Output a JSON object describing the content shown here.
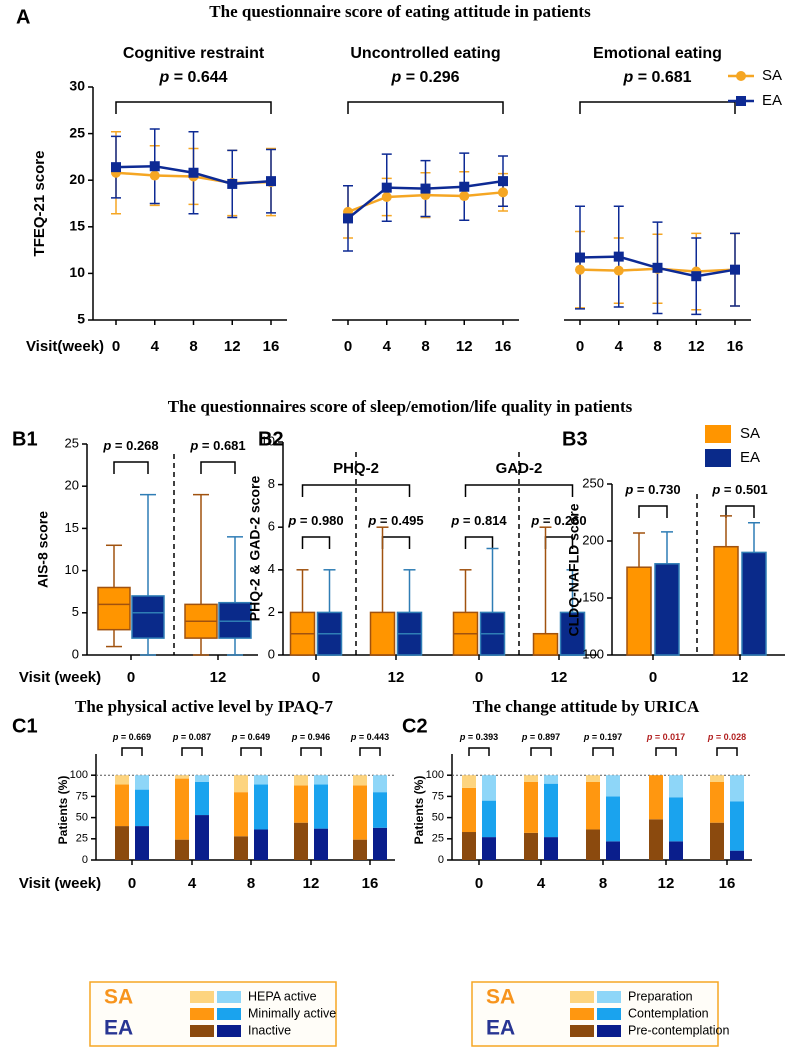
{
  "chart_data": [
    {
      "type": "line",
      "panel": "A",
      "title": "The questionnaire score of eating attitude in patients",
      "ylabel": "TFEQ-21 score",
      "xlabel": "Visit(week)",
      "x": [
        0,
        4,
        8,
        12,
        16
      ],
      "xlim": [
        0,
        16
      ],
      "ylim": [
        5,
        30
      ],
      "yticks": [
        5,
        10,
        15,
        20,
        25,
        30
      ],
      "groups": [
        {
          "title": "Cognitive restraint",
          "p_label": "p = 0.644"
        },
        {
          "title": "Uncontrolled eating",
          "p_label": "p = 0.296"
        },
        {
          "title": "Emotional eating",
          "p_label": "p = 0.681"
        }
      ],
      "legend": "upper right",
      "series": [
        {
          "name": "SA",
          "color": "#F5A623",
          "marker": "circle",
          "values": [
            [
              20.8,
              20.5,
              20.4,
              19.7,
              19.8
            ],
            [
              16.6,
              18.2,
              18.4,
              18.3,
              18.7
            ],
            [
              10.4,
              10.3,
              10.5,
              10.2,
              10.4
            ]
          ],
          "errors": [
            [
              4.4,
              3.2,
              3.0,
              3.5,
              3.6
            ],
            [
              2.8,
              2.0,
              2.4,
              2.6,
              2.0
            ],
            [
              4.1,
              3.5,
              3.7,
              4.1,
              3.9
            ]
          ]
        },
        {
          "name": "EA",
          "color": "#0D2A94",
          "marker": "square",
          "values": [
            [
              21.4,
              21.5,
              20.8,
              19.6,
              19.9
            ],
            [
              15.9,
              19.2,
              19.1,
              19.3,
              19.9
            ],
            [
              11.7,
              11.8,
              10.6,
              9.7,
              10.4
            ]
          ],
          "errors": [
            [
              3.3,
              4.0,
              4.4,
              3.6,
              3.4
            ],
            [
              3.5,
              3.6,
              3.0,
              3.6,
              2.7
            ],
            [
              5.5,
              5.4,
              4.9,
              4.1,
              3.9
            ]
          ]
        }
      ]
    },
    {
      "type": "box",
      "panel": "B1",
      "section_title": "The questionnaires score of sleep/emotion/life quality in patients",
      "ylabel": "AIS-8 score",
      "xlabel": "Visit (week)",
      "categories": [
        "0",
        "12"
      ],
      "ylim": [
        0,
        25
      ],
      "yticks": [
        0,
        5,
        10,
        15,
        20,
        25
      ],
      "p_labels": [
        "p = 0.268",
        "p = 0.681"
      ],
      "series": [
        {
          "color": "#FF9500",
          "edgecolor": "#A0520F",
          "values": [
            {
              "min": 1,
              "q1": 3,
              "median": 6,
              "q3": 8,
              "max": 13
            },
            {
              "min": 0,
              "q1": 2,
              "median": 4,
              "q3": 6,
              "max": 19
            }
          ]
        },
        {
          "color": "#0A2A8A",
          "edgecolor": "#2F7DB5",
          "values": [
            {
              "min": 0,
              "q1": 2,
              "median": 5,
              "q3": 7,
              "max": 19
            },
            {
              "min": 0,
              "q1": 2,
              "median": 4,
              "q3": 6.2,
              "max": 14
            }
          ]
        }
      ]
    },
    {
      "type": "box",
      "panel": "B2",
      "ylabel": "PHQ-2 & GAD-2 score",
      "categories": [
        "0",
        "12"
      ],
      "ylim": [
        0,
        10
      ],
      "yticks": [
        0,
        2,
        4,
        6,
        8,
        10
      ],
      "groups": [
        {
          "title": "PHQ-2",
          "p_labels": [
            "p = 0.980",
            "p = 0.495"
          ]
        },
        {
          "title": "GAD-2",
          "p_labels": [
            "p = 0.814",
            "p = 0.260"
          ]
        }
      ],
      "series": [
        {
          "color": "#FF9500",
          "edgecolor": "#A0520F",
          "values": [
            [
              {
                "min": 0,
                "q1": 0,
                "median": 1,
                "q3": 2,
                "max": 4
              },
              {
                "min": 0,
                "q1": 0,
                "median": 0,
                "q3": 2,
                "max": 6
              }
            ],
            [
              {
                "min": 0,
                "q1": 0,
                "median": 1,
                "q3": 2,
                "max": 4
              },
              {
                "min": 0,
                "q1": 0,
                "median": 0,
                "q3": 1,
                "max": 6
              }
            ]
          ]
        },
        {
          "color": "#0A2A8A",
          "edgecolor": "#2F7DB5",
          "values": [
            [
              {
                "min": 0,
                "q1": 0,
                "median": 1,
                "q3": 2,
                "max": 4
              },
              {
                "min": 0,
                "q1": 0,
                "median": 1,
                "q3": 2,
                "max": 4
              }
            ],
            [
              {
                "min": 0,
                "q1": 0,
                "median": 1,
                "q3": 2,
                "max": 5
              },
              {
                "min": 0,
                "q1": 0,
                "median": 0,
                "q3": 2,
                "max": 4
              }
            ]
          ]
        }
      ]
    },
    {
      "type": "bar",
      "panel": "B3",
      "ylabel": "CLDQ-NAFLD score",
      "categories": [
        "0",
        "12"
      ],
      "ylim": [
        100,
        250
      ],
      "yticks": [
        100,
        150,
        200,
        250
      ],
      "p_labels": [
        "p = 0.730",
        "p = 0.501"
      ],
      "legend": "upper right",
      "series": [
        {
          "name": "SA",
          "color": "#FF9500",
          "edgecolor": "#A0520F",
          "values": [
            177,
            195
          ],
          "errors": [
            30,
            27
          ]
        },
        {
          "name": "EA",
          "color": "#0A2A8A",
          "edgecolor": "#2F7DB5",
          "values": [
            180,
            190
          ],
          "errors": [
            28,
            26
          ]
        }
      ]
    },
    {
      "type": "stacked_bar",
      "panel": "C1",
      "title": "The physical active level by IPAQ-7",
      "ylabel": "Patients (%)",
      "xlabel": "Visit (week)",
      "categories": [
        "0",
        "4",
        "8",
        "12",
        "16"
      ],
      "ylim": [
        0,
        125
      ],
      "yticks": [
        0,
        25,
        50,
        75,
        100
      ],
      "reference_line": 100,
      "p_labels": [
        "p = 0.669",
        "p = 0.087",
        "p = 0.649",
        "p = 0.946",
        "p = 0.443"
      ],
      "p_label_colors": [
        "#000000",
        "#000000",
        "#000000",
        "#000000",
        "#000000"
      ],
      "groups": [
        {
          "name": "SA",
          "color": "#F7941D",
          "series": [
            {
              "name": "Inactive",
              "color": "#8B4A0E",
              "values": [
                40,
                24,
                28,
                44,
                24
              ]
            },
            {
              "name": "Minimally active",
              "color": "#FF9710",
              "values": [
                49,
                72,
                52,
                44,
                64
              ]
            },
            {
              "name": "HEPA active",
              "color": "#FDD47F",
              "values": [
                11,
                4,
                20,
                12,
                12
              ]
            }
          ]
        },
        {
          "name": "EA",
          "color": "#283593",
          "series": [
            {
              "color": "#0A1E8C",
              "values": [
                40,
                53,
                36,
                37,
                38
              ]
            },
            {
              "color": "#1AA3EE",
              "values": [
                43,
                39,
                53,
                52,
                42
              ]
            },
            {
              "color": "#8ED6F8",
              "values": [
                17,
                8,
                11,
                11,
                20
              ]
            }
          ]
        }
      ]
    },
    {
      "type": "stacked_bar",
      "panel": "C2",
      "title": "The change attitude by URICA",
      "ylabel": "Patients (%)",
      "categories": [
        "0",
        "4",
        "8",
        "12",
        "16"
      ],
      "ylim": [
        0,
        125
      ],
      "yticks": [
        0,
        25,
        50,
        75,
        100
      ],
      "reference_line": 100,
      "p_labels": [
        "p = 0.393",
        "p = 0.897",
        "p = 0.197",
        "p = 0.017",
        "p = 0.028"
      ],
      "p_label_colors": [
        "#000000",
        "#000000",
        "#000000",
        "#B22222",
        "#B22222"
      ],
      "groups": [
        {
          "name": "SA",
          "color": "#F7941D",
          "series": [
            {
              "name": "Pre-contemplation",
              "color": "#8B4A0E",
              "values": [
                33,
                32,
                36,
                48,
                44
              ]
            },
            {
              "name": "Contemplation",
              "color": "#FF9710",
              "values": [
                52,
                60,
                56,
                52,
                48
              ]
            },
            {
              "name": "Preparation",
              "color": "#FDD47F",
              "values": [
                15,
                8,
                8,
                0,
                8
              ]
            }
          ]
        },
        {
          "name": "EA",
          "color": "#283593",
          "series": [
            {
              "color": "#0A1E8C",
              "values": [
                27,
                27,
                22,
                22,
                11
              ]
            },
            {
              "color": "#1AA3EE",
              "values": [
                43,
                63,
                53,
                52,
                58
              ]
            },
            {
              "color": "#8ED6F8",
              "values": [
                30,
                10,
                25,
                26,
                31
              ]
            }
          ]
        }
      ]
    }
  ]
}
